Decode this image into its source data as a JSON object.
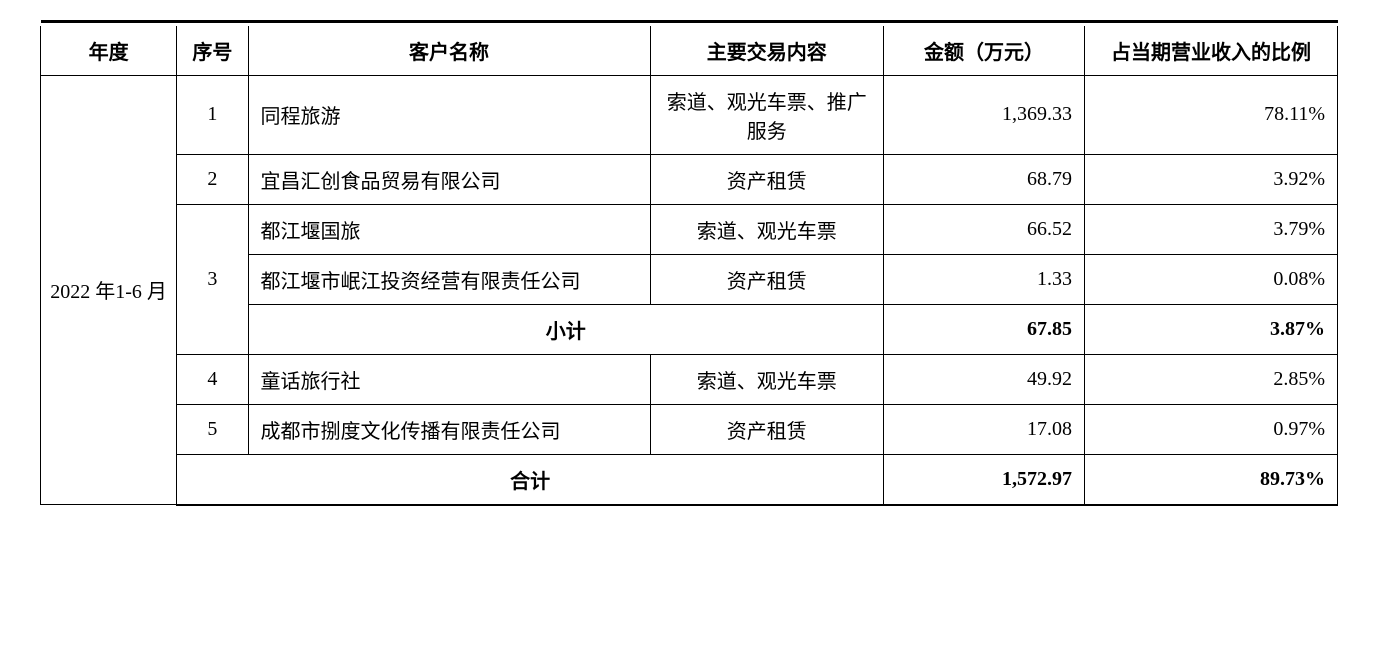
{
  "table": {
    "headers": {
      "year": "年度",
      "num": "序号",
      "name": "客户名称",
      "content": "主要交易内容",
      "amount": "金额（万元）",
      "ratio": "占当期营业收入的比例"
    },
    "year_label": "2022 年1-6 月",
    "rows": [
      {
        "num": "1",
        "name": "同程旅游",
        "content": "索道、观光车票、推广服务",
        "amount": "1,369.33",
        "ratio": "78.11%"
      },
      {
        "num": "2",
        "name": "宜昌汇创食品贸易有限公司",
        "content": "资产租赁",
        "amount": "68.79",
        "ratio": "3.92%"
      },
      {
        "num": "3",
        "name": "都江堰国旅",
        "content": "索道、观光车票",
        "amount": "66.52",
        "ratio": "3.79%"
      },
      {
        "num": "",
        "name": "都江堰市岷江投资经营有限责任公司",
        "content": "资产租赁",
        "amount": "1.33",
        "ratio": "0.08%"
      }
    ],
    "subtotal": {
      "label": "小计",
      "amount": "67.85",
      "ratio": "3.87%"
    },
    "rows2": [
      {
        "num": "4",
        "name": "童话旅行社",
        "content": "索道、观光车票",
        "amount": "49.92",
        "ratio": "2.85%"
      },
      {
        "num": "5",
        "name": "成都市捌度文化传播有限责任公司",
        "content": "资产租赁",
        "amount": "17.08",
        "ratio": "0.97%"
      }
    ],
    "total": {
      "label": "合计",
      "amount": "1,572.97",
      "ratio": "89.73%"
    }
  }
}
